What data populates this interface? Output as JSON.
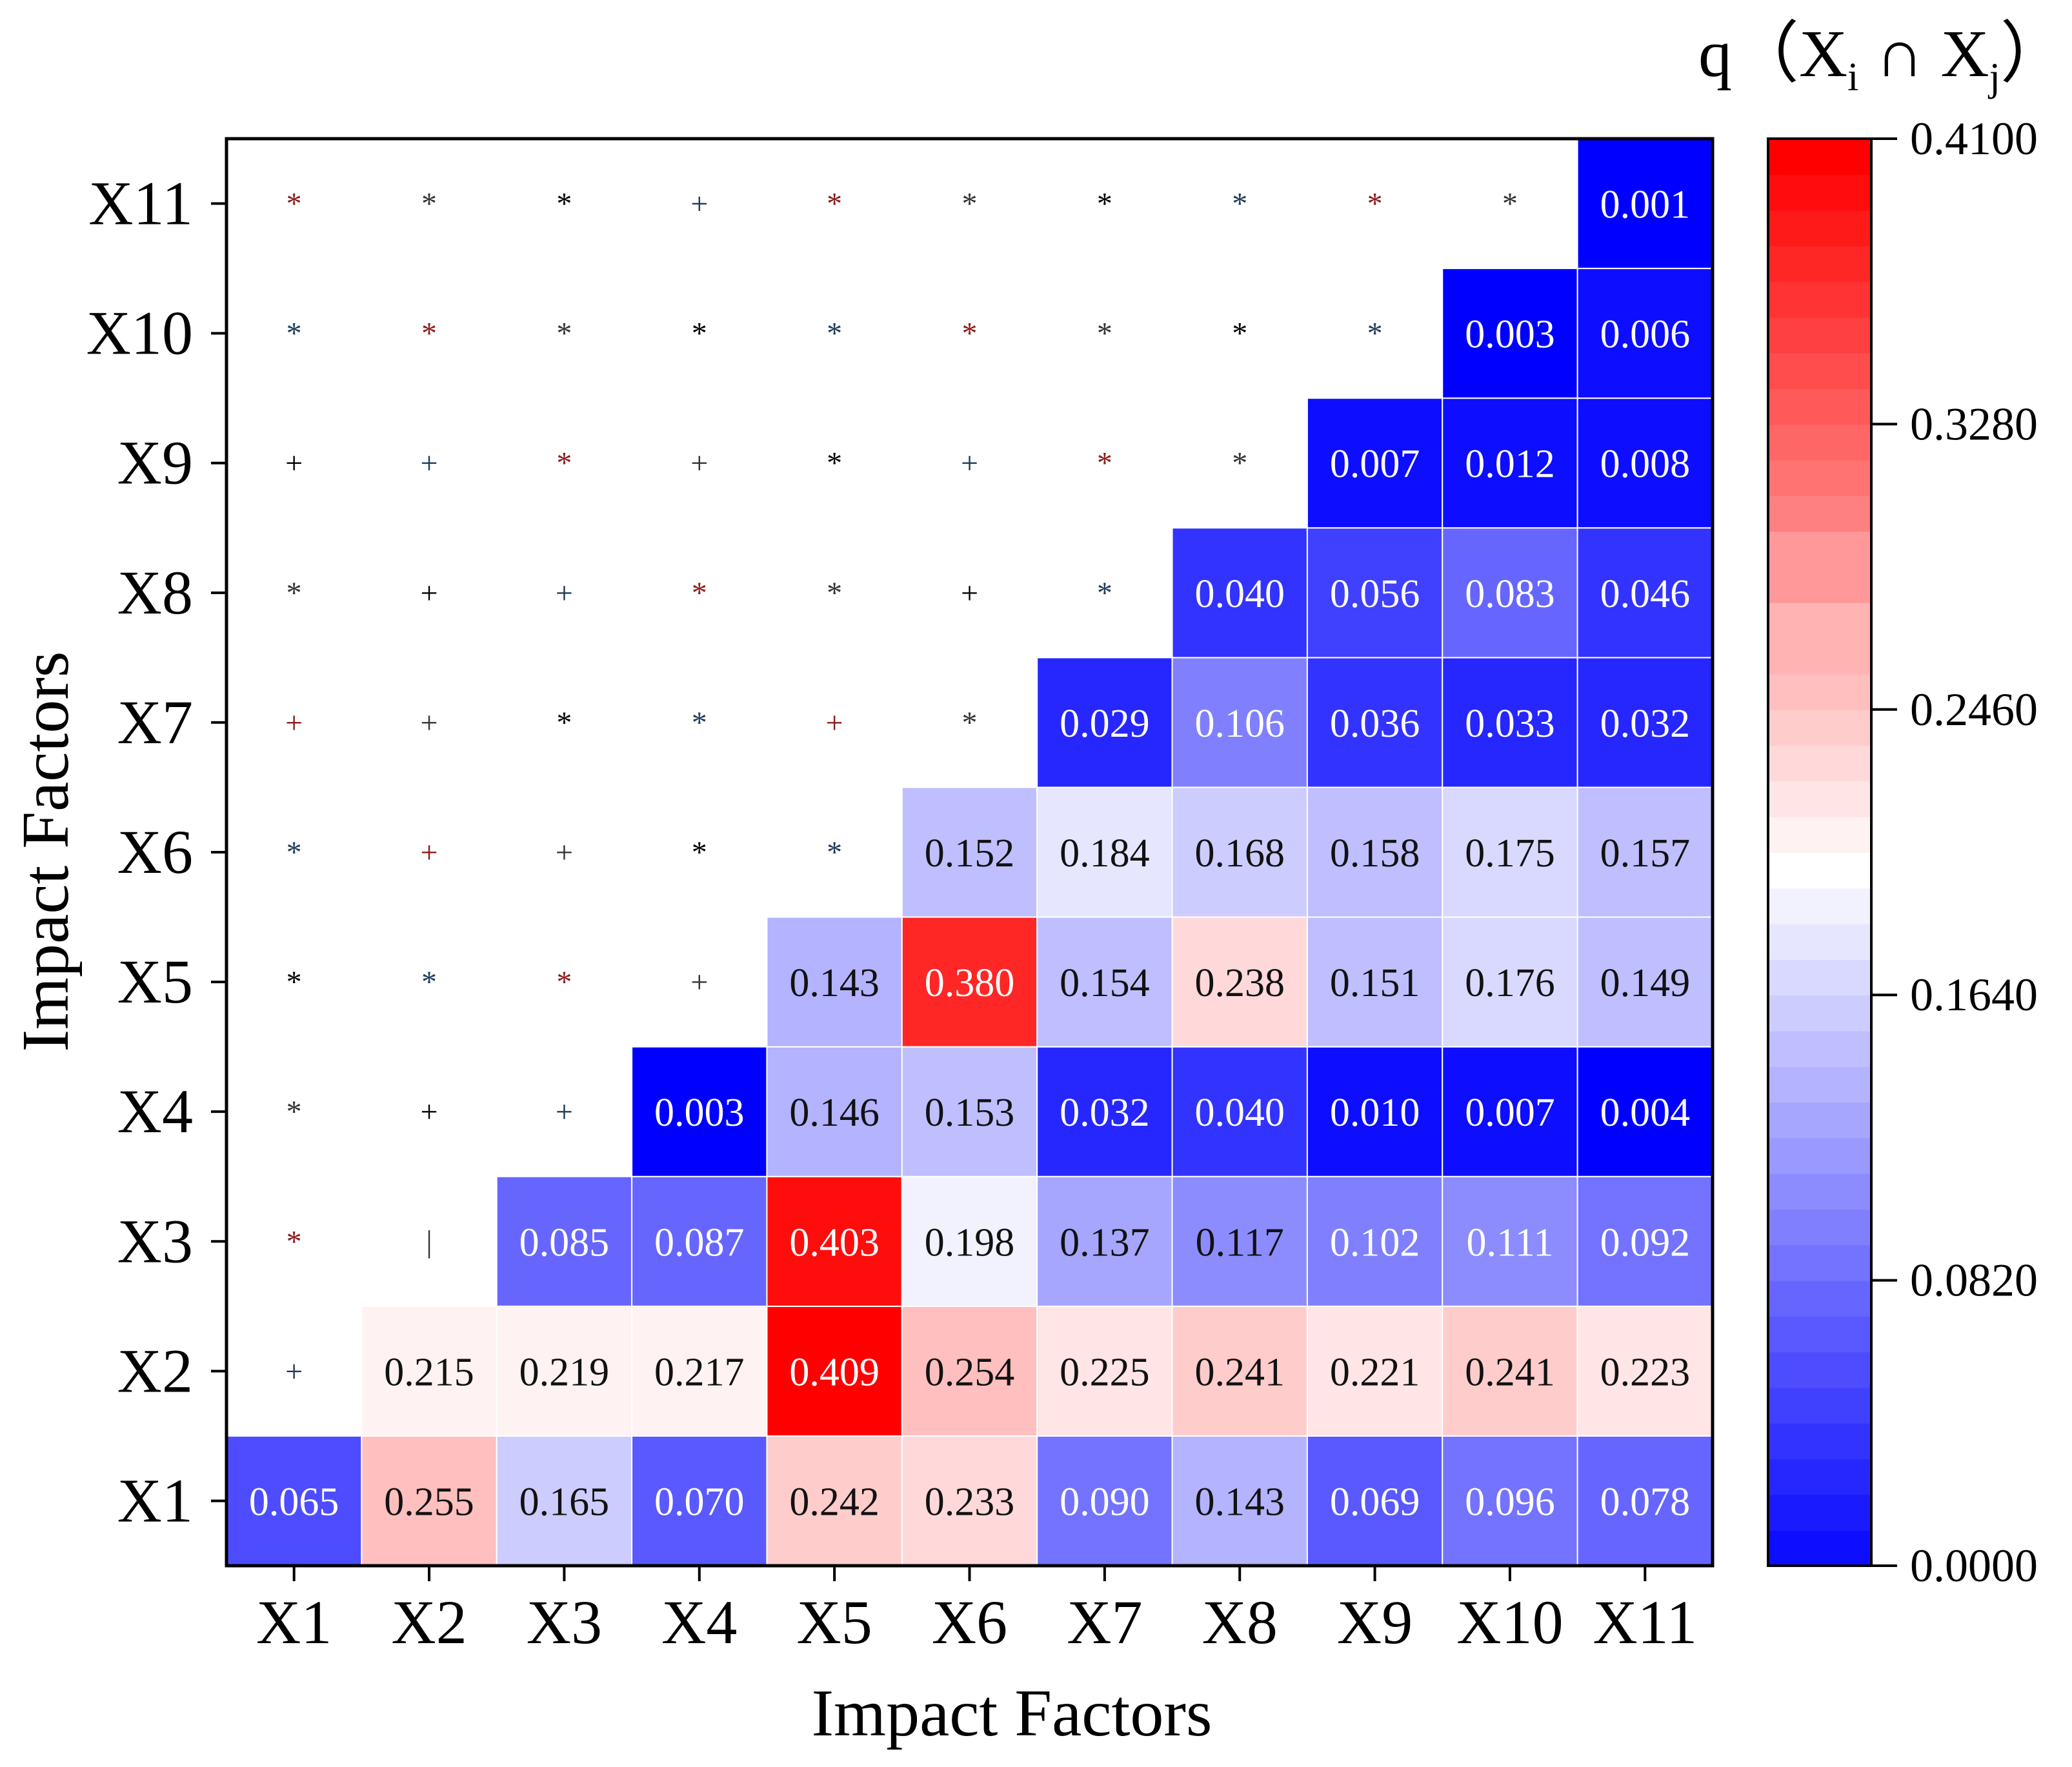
{
  "chart_data": {
    "type": "heatmap",
    "title": "",
    "xlabel": "Impact Factors",
    "ylabel": "Impact Factors",
    "colorbar_title": {
      "base": "q（X",
      "sub1": "i",
      "mid": " ∩ X",
      "sub2": "j",
      "end": "）"
    },
    "categories": [
      "X1",
      "X2",
      "X3",
      "X4",
      "X5",
      "X6",
      "X7",
      "X8",
      "X9",
      "X10",
      "X11"
    ],
    "color_range": [
      0.0,
      0.41
    ],
    "colorbar_ticks": [
      "0.0000",
      "0.0820",
      "0.1640",
      "0.2460",
      "0.3280",
      "0.4100"
    ],
    "colors": {
      "low": "#0000ff",
      "mid": "#ffffff",
      "high": "#ff0000"
    },
    "rows": [
      {
        "y": "X1",
        "values": [
          "0.065",
          "0.255",
          "0.165",
          "0.070",
          "0.242",
          "0.233",
          "0.090",
          "0.143",
          "0.069",
          "0.096",
          "0.078"
        ]
      },
      {
        "y": "X2",
        "values": [
          null,
          "0.215",
          "0.219",
          "0.217",
          "0.409",
          "0.254",
          "0.225",
          "0.241",
          "0.221",
          "0.241",
          "0.223"
        ]
      },
      {
        "y": "X3",
        "values": [
          null,
          null,
          "0.085",
          "0.087",
          "0.403",
          "0.198",
          "0.137",
          "0.117",
          "0.102",
          "0.111",
          "0.092"
        ]
      },
      {
        "y": "X4",
        "values": [
          null,
          null,
          null,
          "0.003",
          "0.146",
          "0.153",
          "0.032",
          "0.040",
          "0.010",
          "0.007",
          "0.004"
        ]
      },
      {
        "y": "X5",
        "values": [
          null,
          null,
          null,
          null,
          "0.143",
          "0.380",
          "0.154",
          "0.238",
          "0.151",
          "0.176",
          "0.149"
        ]
      },
      {
        "y": "X6",
        "values": [
          null,
          null,
          null,
          null,
          null,
          "0.152",
          "0.184",
          "0.168",
          "0.158",
          "0.175",
          "0.157"
        ]
      },
      {
        "y": "X7",
        "values": [
          null,
          null,
          null,
          null,
          null,
          null,
          "0.029",
          "0.106",
          "0.036",
          "0.033",
          "0.032"
        ]
      },
      {
        "y": "X8",
        "values": [
          null,
          null,
          null,
          null,
          null,
          null,
          null,
          "0.040",
          "0.056",
          "0.083",
          "0.046"
        ]
      },
      {
        "y": "X9",
        "values": [
          null,
          null,
          null,
          null,
          null,
          null,
          null,
          null,
          "0.007",
          "0.012",
          "0.008"
        ]
      },
      {
        "y": "X10",
        "values": [
          null,
          null,
          null,
          null,
          null,
          null,
          null,
          null,
          null,
          "0.003",
          "0.006"
        ]
      },
      {
        "y": "X11",
        "values": [
          null,
          null,
          null,
          null,
          null,
          null,
          null,
          null,
          null,
          null,
          "0.001"
        ]
      }
    ],
    "markers": [
      {
        "y": "X2",
        "symbols": [
          "+"
        ]
      },
      {
        "y": "X3",
        "symbols": [
          "*",
          "|"
        ]
      },
      {
        "y": "X4",
        "symbols": [
          "*",
          "+",
          "+"
        ]
      },
      {
        "y": "X5",
        "symbols": [
          "*",
          "*",
          "*",
          "+"
        ]
      },
      {
        "y": "X6",
        "symbols": [
          "*",
          "+",
          "+",
          "*",
          "*"
        ]
      },
      {
        "y": "X7",
        "symbols": [
          "+",
          "+",
          "*",
          "*",
          "+",
          "*"
        ]
      },
      {
        "y": "X8",
        "symbols": [
          "*",
          "+",
          "+",
          "*",
          "*",
          "+",
          "*"
        ]
      },
      {
        "y": "X9",
        "symbols": [
          "+",
          "+",
          "*",
          "+",
          "*",
          "+",
          "*",
          "*"
        ]
      },
      {
        "y": "X10",
        "symbols": [
          "*",
          "*",
          "*",
          "*",
          "*",
          "*",
          "*",
          "*",
          "*"
        ]
      },
      {
        "y": "X11",
        "symbols": [
          "*",
          "*",
          "*",
          "+",
          "*",
          "*",
          "*",
          "*",
          "*",
          "*"
        ]
      }
    ]
  }
}
